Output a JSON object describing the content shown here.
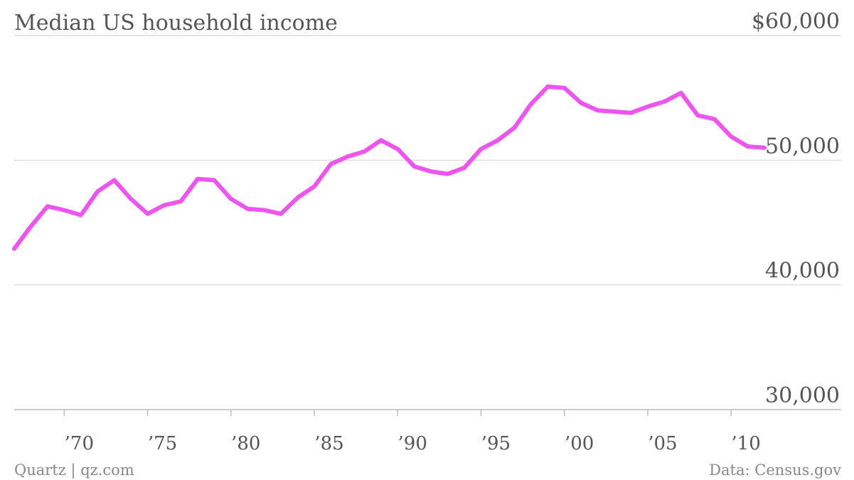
{
  "chart_data": {
    "type": "line",
    "title": "Median US household income",
    "xlabel": "",
    "ylabel": "",
    "xlim": [
      1967,
      2012
    ],
    "ylim": [
      30000,
      60000
    ],
    "y_ticks": [
      {
        "value": 60000,
        "label": "$60,000"
      },
      {
        "value": 50000,
        "label": "50,000"
      },
      {
        "value": 40000,
        "label": "40,000"
      },
      {
        "value": 30000,
        "label": "30,000"
      }
    ],
    "x_ticks": [
      {
        "value": 1970,
        "label": "’70"
      },
      {
        "value": 1975,
        "label": "’75"
      },
      {
        "value": 1980,
        "label": "’80"
      },
      {
        "value": 1985,
        "label": "’85"
      },
      {
        "value": 1990,
        "label": "’90"
      },
      {
        "value": 1995,
        "label": "’95"
      },
      {
        "value": 2000,
        "label": "’00"
      },
      {
        "value": 2005,
        "label": "’05"
      },
      {
        "value": 2010,
        "label": "’10"
      }
    ],
    "grid": true,
    "series": [
      {
        "color": "#ee55ee",
        "x": [
          1967,
          1968,
          1969,
          1970,
          1971,
          1972,
          1973,
          1974,
          1975,
          1976,
          1977,
          1978,
          1979,
          1980,
          1981,
          1982,
          1983,
          1984,
          1985,
          1986,
          1987,
          1988,
          1989,
          1990,
          1991,
          1992,
          1993,
          1994,
          1995,
          1996,
          1997,
          1998,
          1999,
          2000,
          2001,
          2002,
          2003,
          2004,
          2005,
          2006,
          2007,
          2008,
          2009,
          2010,
          2011,
          2012
        ],
        "values": [
          42900,
          44700,
          46300,
          46000,
          45600,
          47500,
          48400,
          46900,
          45700,
          46400,
          46700,
          48500,
          48400,
          46900,
          46100,
          46000,
          45700,
          47000,
          47900,
          49700,
          50300,
          50700,
          51600,
          50900,
          49500,
          49100,
          48900,
          49400,
          50900,
          51600,
          52600,
          54500,
          55900,
          55800,
          54600,
          54000,
          53900,
          53800,
          54300,
          54700,
          55400,
          53600,
          53300,
          51900,
          51100,
          51000
        ]
      }
    ],
    "footer_left": "Quartz | qz.com",
    "footer_right": "Data: Census.gov"
  }
}
